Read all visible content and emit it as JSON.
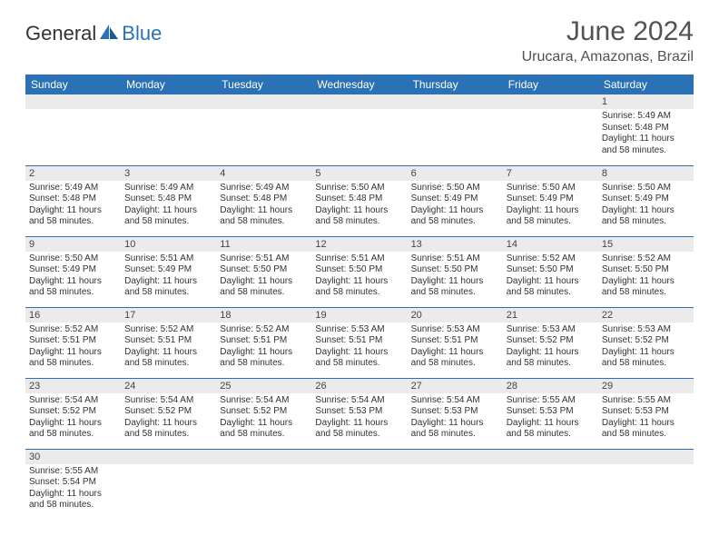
{
  "brand": {
    "general": "General",
    "blue": "Blue"
  },
  "title": "June 2024",
  "location": "Urucara, Amazonas, Brazil",
  "colors": {
    "header_bg": "#2a72b5",
    "header_text": "#ffffff",
    "daynum_bg": "#ebebeb",
    "border": "#2a72b5",
    "title_color": "#525252",
    "text_color": "#333333",
    "page_bg": "#ffffff"
  },
  "weekdays": [
    "Sunday",
    "Monday",
    "Tuesday",
    "Wednesday",
    "Thursday",
    "Friday",
    "Saturday"
  ],
  "first_weekday": 6,
  "days": [
    {
      "n": 1,
      "sunrise": "5:49 AM",
      "sunset": "5:48 PM",
      "daylight": "11 hours and 58 minutes."
    },
    {
      "n": 2,
      "sunrise": "5:49 AM",
      "sunset": "5:48 PM",
      "daylight": "11 hours and 58 minutes."
    },
    {
      "n": 3,
      "sunrise": "5:49 AM",
      "sunset": "5:48 PM",
      "daylight": "11 hours and 58 minutes."
    },
    {
      "n": 4,
      "sunrise": "5:49 AM",
      "sunset": "5:48 PM",
      "daylight": "11 hours and 58 minutes."
    },
    {
      "n": 5,
      "sunrise": "5:50 AM",
      "sunset": "5:48 PM",
      "daylight": "11 hours and 58 minutes."
    },
    {
      "n": 6,
      "sunrise": "5:50 AM",
      "sunset": "5:49 PM",
      "daylight": "11 hours and 58 minutes."
    },
    {
      "n": 7,
      "sunrise": "5:50 AM",
      "sunset": "5:49 PM",
      "daylight": "11 hours and 58 minutes."
    },
    {
      "n": 8,
      "sunrise": "5:50 AM",
      "sunset": "5:49 PM",
      "daylight": "11 hours and 58 minutes."
    },
    {
      "n": 9,
      "sunrise": "5:50 AM",
      "sunset": "5:49 PM",
      "daylight": "11 hours and 58 minutes."
    },
    {
      "n": 10,
      "sunrise": "5:51 AM",
      "sunset": "5:49 PM",
      "daylight": "11 hours and 58 minutes."
    },
    {
      "n": 11,
      "sunrise": "5:51 AM",
      "sunset": "5:50 PM",
      "daylight": "11 hours and 58 minutes."
    },
    {
      "n": 12,
      "sunrise": "5:51 AM",
      "sunset": "5:50 PM",
      "daylight": "11 hours and 58 minutes."
    },
    {
      "n": 13,
      "sunrise": "5:51 AM",
      "sunset": "5:50 PM",
      "daylight": "11 hours and 58 minutes."
    },
    {
      "n": 14,
      "sunrise": "5:52 AM",
      "sunset": "5:50 PM",
      "daylight": "11 hours and 58 minutes."
    },
    {
      "n": 15,
      "sunrise": "5:52 AM",
      "sunset": "5:50 PM",
      "daylight": "11 hours and 58 minutes."
    },
    {
      "n": 16,
      "sunrise": "5:52 AM",
      "sunset": "5:51 PM",
      "daylight": "11 hours and 58 minutes."
    },
    {
      "n": 17,
      "sunrise": "5:52 AM",
      "sunset": "5:51 PM",
      "daylight": "11 hours and 58 minutes."
    },
    {
      "n": 18,
      "sunrise": "5:52 AM",
      "sunset": "5:51 PM",
      "daylight": "11 hours and 58 minutes."
    },
    {
      "n": 19,
      "sunrise": "5:53 AM",
      "sunset": "5:51 PM",
      "daylight": "11 hours and 58 minutes."
    },
    {
      "n": 20,
      "sunrise": "5:53 AM",
      "sunset": "5:51 PM",
      "daylight": "11 hours and 58 minutes."
    },
    {
      "n": 21,
      "sunrise": "5:53 AM",
      "sunset": "5:52 PM",
      "daylight": "11 hours and 58 minutes."
    },
    {
      "n": 22,
      "sunrise": "5:53 AM",
      "sunset": "5:52 PM",
      "daylight": "11 hours and 58 minutes."
    },
    {
      "n": 23,
      "sunrise": "5:54 AM",
      "sunset": "5:52 PM",
      "daylight": "11 hours and 58 minutes."
    },
    {
      "n": 24,
      "sunrise": "5:54 AM",
      "sunset": "5:52 PM",
      "daylight": "11 hours and 58 minutes."
    },
    {
      "n": 25,
      "sunrise": "5:54 AM",
      "sunset": "5:52 PM",
      "daylight": "11 hours and 58 minutes."
    },
    {
      "n": 26,
      "sunrise": "5:54 AM",
      "sunset": "5:53 PM",
      "daylight": "11 hours and 58 minutes."
    },
    {
      "n": 27,
      "sunrise": "5:54 AM",
      "sunset": "5:53 PM",
      "daylight": "11 hours and 58 minutes."
    },
    {
      "n": 28,
      "sunrise": "5:55 AM",
      "sunset": "5:53 PM",
      "daylight": "11 hours and 58 minutes."
    },
    {
      "n": 29,
      "sunrise": "5:55 AM",
      "sunset": "5:53 PM",
      "daylight": "11 hours and 58 minutes."
    },
    {
      "n": 30,
      "sunrise": "5:55 AM",
      "sunset": "5:54 PM",
      "daylight": "11 hours and 58 minutes."
    }
  ],
  "labels": {
    "sunrise": "Sunrise:",
    "sunset": "Sunset:",
    "daylight": "Daylight:"
  }
}
